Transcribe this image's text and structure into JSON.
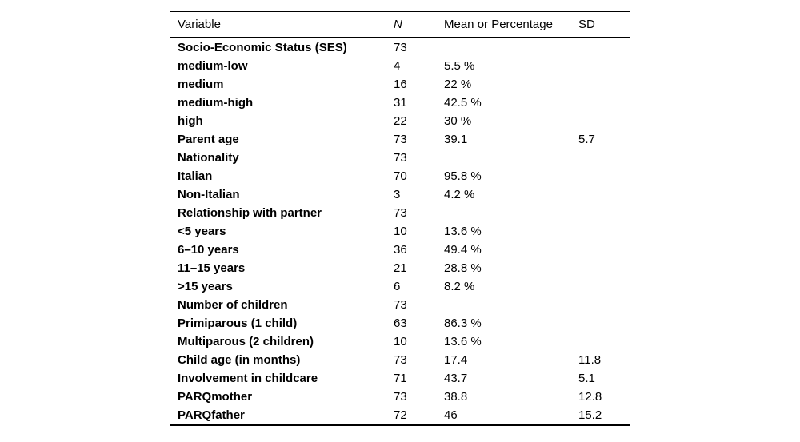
{
  "colors": {
    "background": "#ffffff",
    "text": "#000000",
    "rule": "#000000"
  },
  "table": {
    "columns": {
      "variable": "Variable",
      "n": "N",
      "mean": "Mean or Percentage",
      "sd": "SD"
    },
    "rows": [
      {
        "variable": "Socio-Economic Status (SES)",
        "n": "73",
        "mean": "",
        "sd": ""
      },
      {
        "variable": "medium-low",
        "n": "4",
        "mean": "5.5 %",
        "sd": ""
      },
      {
        "variable": "medium",
        "n": "16",
        "mean": "22 %",
        "sd": ""
      },
      {
        "variable": "medium-high",
        "n": "31",
        "mean": "42.5 %",
        "sd": ""
      },
      {
        "variable": "high",
        "n": "22",
        "mean": "30 %",
        "sd": ""
      },
      {
        "variable": "Parent age",
        "n": "73",
        "mean": "39.1",
        "sd": "5.7"
      },
      {
        "variable": "Nationality",
        "n": "73",
        "mean": "",
        "sd": ""
      },
      {
        "variable": "Italian",
        "n": "70",
        "mean": "95.8 %",
        "sd": ""
      },
      {
        "variable": "Non-Italian",
        "n": "3",
        "mean": "4.2 %",
        "sd": ""
      },
      {
        "variable": "Relationship with partner",
        "n": "73",
        "mean": "",
        "sd": ""
      },
      {
        "variable": "<5 years",
        "n": "10",
        "mean": "13.6 %",
        "sd": ""
      },
      {
        "variable": "6–10 years",
        "n": "36",
        "mean": "49.4 %",
        "sd": ""
      },
      {
        "variable": "11–15 years",
        "n": "21",
        "mean": "28.8 %",
        "sd": ""
      },
      {
        "variable": ">15 years",
        "n": "6",
        "mean": "8.2 %",
        "sd": ""
      },
      {
        "variable": "Number of children",
        "n": "73",
        "mean": "",
        "sd": ""
      },
      {
        "variable": "Primiparous (1 child)",
        "n": "63",
        "mean": "86.3 %",
        "sd": ""
      },
      {
        "variable": "Multiparous (2 children)",
        "n": "10",
        "mean": "13.6 %",
        "sd": ""
      },
      {
        "variable": "Child age (in months)",
        "n": "73",
        "mean": "17.4",
        "sd": "11.8"
      },
      {
        "variable": "Involvement in childcare",
        "n": "71",
        "mean": "43.7",
        "sd": "5.1"
      },
      {
        "variable": "PARQmother",
        "n": "73",
        "mean": "38.8",
        "sd": "12.8"
      },
      {
        "variable": "PARQfather",
        "n": "72",
        "mean": "46",
        "sd": "15.2"
      }
    ]
  }
}
